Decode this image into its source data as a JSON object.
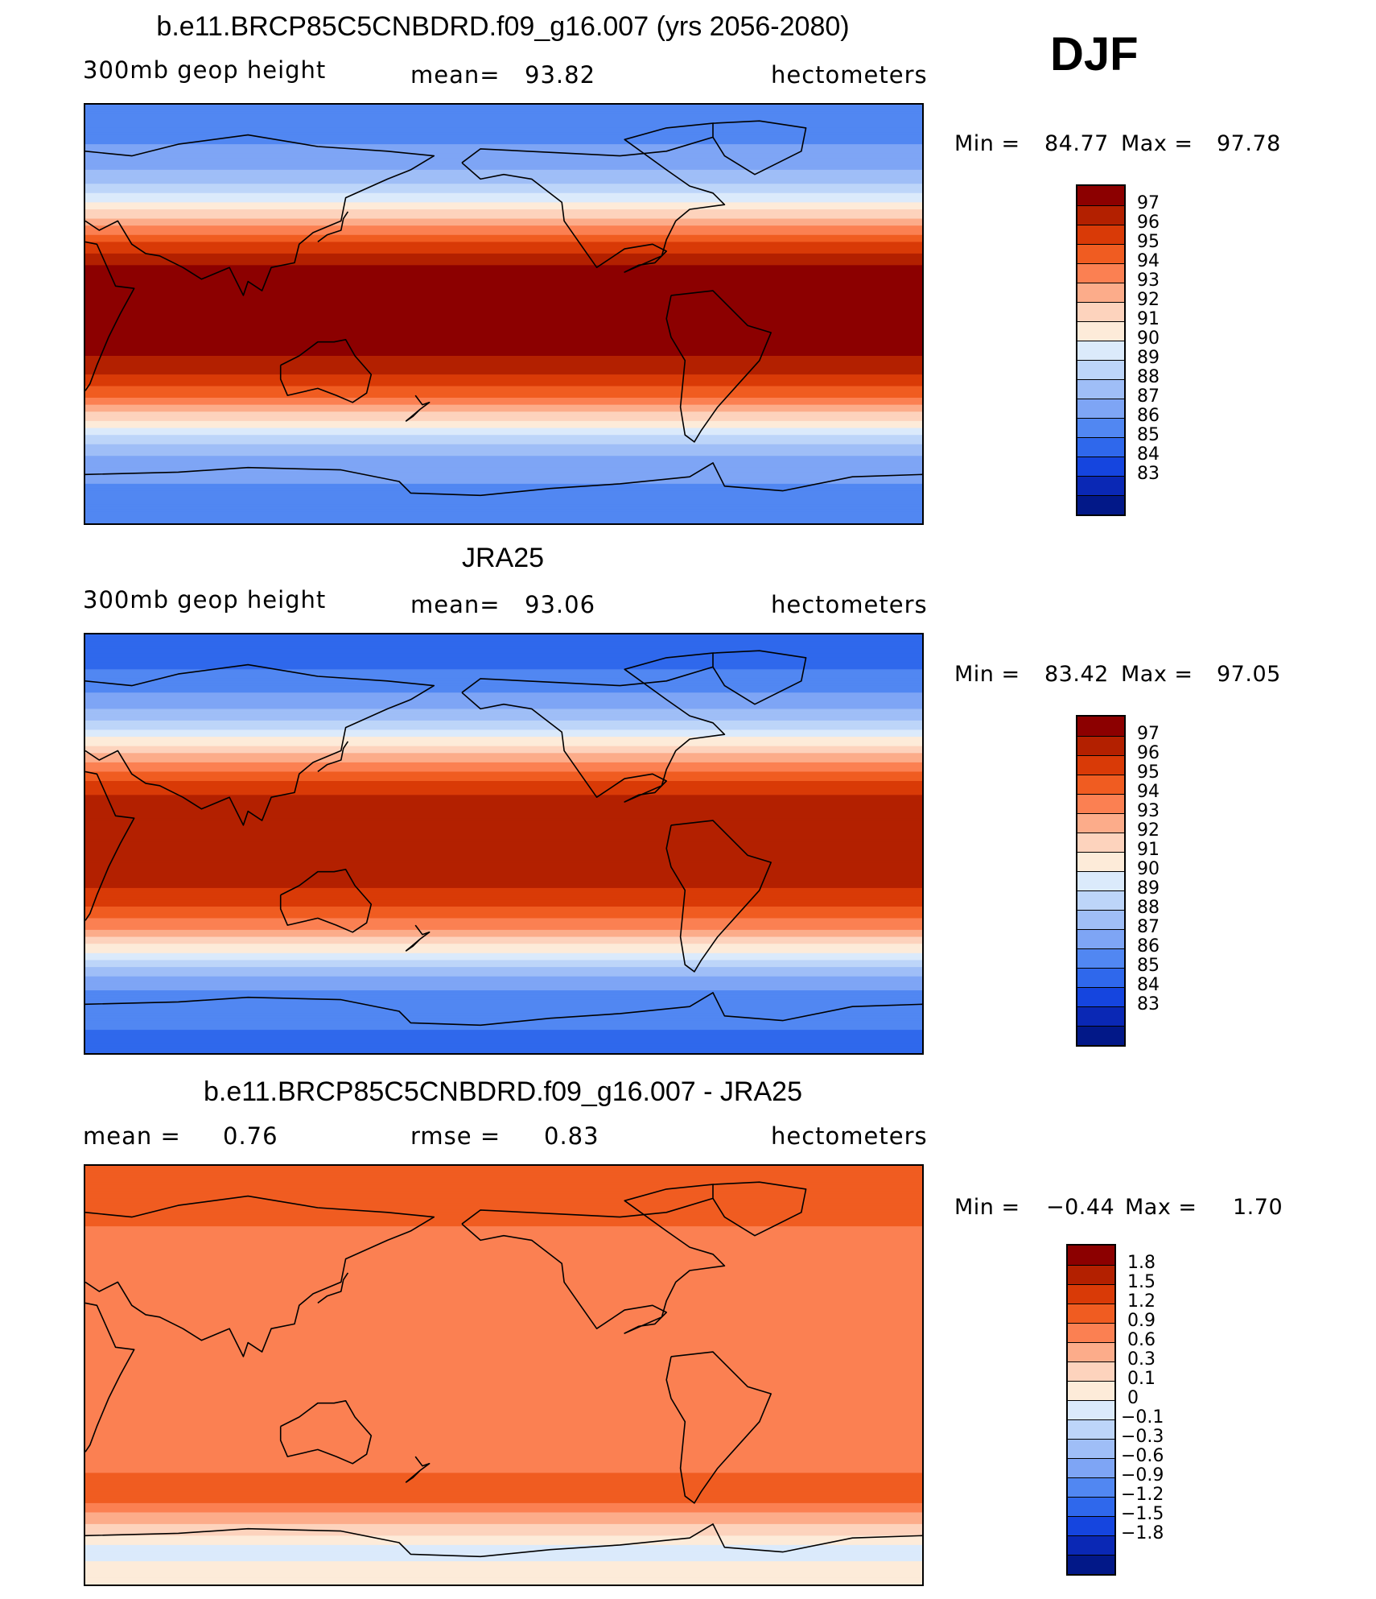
{
  "season": "DJF",
  "units": "hectometers",
  "colors": {
    "warm": [
      "#8c0000",
      "#b32000",
      "#d93a07",
      "#f05c21",
      "#fb8052",
      "#fcac8a",
      "#fdd3bd",
      "#fdebd9"
    ],
    "cool": [
      "#dbeafb",
      "#bdd5f9",
      "#9fbef7",
      "#7ea5f5",
      "#5187f2",
      "#2f68ec",
      "#1545df",
      "#0a28b5",
      "#021888"
    ],
    "land_outline": "#000000"
  },
  "chart_data": [
    {
      "type": "heatmap",
      "panel": "model",
      "title": "b.e11.BRCP85C5CNBDRD.f09_g16.007 (yrs 2056-2080)",
      "variable": "300mb geop height",
      "stat_label": "mean=",
      "stat_value": "93.82",
      "units": "hectometers",
      "min_label": "Min =",
      "min_value": "84.77",
      "max_label": "Max =",
      "max_value": "97.78",
      "x_range_lon": [
        30,
        390
      ],
      "y_range_lat": [
        -90,
        90
      ],
      "colorbar_levels": [
        "97",
        "96",
        "95",
        "94",
        "93",
        "92",
        "91",
        "90",
        "89",
        "88",
        "87",
        "86",
        "85",
        "84",
        "83"
      ],
      "colorbar_colors": [
        "#8c0000",
        "#b32000",
        "#d93a07",
        "#f05c21",
        "#fb8052",
        "#fcac8a",
        "#fdd3bd",
        "#fdebd9",
        "#dbeafb",
        "#bdd5f9",
        "#9fbef7",
        "#7ea5f5",
        "#5187f2",
        "#2f68ec",
        "#1545df",
        "#0a28b5",
        "#021888"
      ],
      "zonal_profile": [
        {
          "lat": 90,
          "value": 85.3
        },
        {
          "lat": 75,
          "value": 85.8
        },
        {
          "lat": 60,
          "value": 87.2
        },
        {
          "lat": 50,
          "value": 89.4
        },
        {
          "lat": 40,
          "value": 92.4
        },
        {
          "lat": 30,
          "value": 95.3
        },
        {
          "lat": 20,
          "value": 97.1
        },
        {
          "lat": 0,
          "value": 97.6
        },
        {
          "lat": -15,
          "value": 97.3
        },
        {
          "lat": -25,
          "value": 96.2
        },
        {
          "lat": -35,
          "value": 94.2
        },
        {
          "lat": -45,
          "value": 91.2
        },
        {
          "lat": -55,
          "value": 88.2
        },
        {
          "lat": -65,
          "value": 86.3
        },
        {
          "lat": -90,
          "value": 85.4
        }
      ]
    },
    {
      "type": "heatmap",
      "panel": "obs",
      "title": "JRA25",
      "variable": "300mb geop height",
      "stat_label": "mean=",
      "stat_value": "93.06",
      "units": "hectometers",
      "min_label": "Min =",
      "min_value": "83.42",
      "max_label": "Max =",
      "max_value": "97.05",
      "x_range_lon": [
        30,
        390
      ],
      "y_range_lat": [
        -90,
        90
      ],
      "colorbar_levels": [
        "97",
        "96",
        "95",
        "94",
        "93",
        "92",
        "91",
        "90",
        "89",
        "88",
        "87",
        "86",
        "85",
        "84",
        "83"
      ],
      "colorbar_colors": [
        "#8c0000",
        "#b32000",
        "#d93a07",
        "#f05c21",
        "#fb8052",
        "#fcac8a",
        "#fdd3bd",
        "#fdebd9",
        "#dbeafb",
        "#bdd5f9",
        "#9fbef7",
        "#7ea5f5",
        "#5187f2",
        "#2f68ec",
        "#1545df",
        "#0a28b5",
        "#021888"
      ],
      "zonal_profile": [
        {
          "lat": 90,
          "value": 84.2
        },
        {
          "lat": 75,
          "value": 85.0
        },
        {
          "lat": 60,
          "value": 86.5
        },
        {
          "lat": 50,
          "value": 88.7
        },
        {
          "lat": 40,
          "value": 91.6
        },
        {
          "lat": 30,
          "value": 94.4
        },
        {
          "lat": 20,
          "value": 96.2
        },
        {
          "lat": 0,
          "value": 96.6
        },
        {
          "lat": -15,
          "value": 96.4
        },
        {
          "lat": -25,
          "value": 95.4
        },
        {
          "lat": -35,
          "value": 93.5
        },
        {
          "lat": -45,
          "value": 90.5
        },
        {
          "lat": -55,
          "value": 87.4
        },
        {
          "lat": -65,
          "value": 85.6
        },
        {
          "lat": -90,
          "value": 84.6
        }
      ]
    },
    {
      "type": "heatmap",
      "panel": "difference",
      "title": "b.e11.BRCP85C5CNBDRD.f09_g16.007 - JRA25",
      "stat_label": "mean =",
      "stat_value": "0.76",
      "stat2_label": "rmse =",
      "stat2_value": "0.83",
      "units": "hectometers",
      "min_label": "Min =",
      "min_value": "−0.44",
      "max_label": "Max =",
      "max_value": "1.70",
      "x_range_lon": [
        30,
        390
      ],
      "y_range_lat": [
        -90,
        90
      ],
      "colorbar_levels": [
        "1.8",
        "1.5",
        "1.2",
        "0.9",
        "0.6",
        "0.3",
        "0.1",
        "0",
        "−0.1",
        "−0.3",
        "−0.6",
        "−0.9",
        "−1.2",
        "−1.5",
        "−1.8"
      ],
      "colorbar_colors": [
        "#8c0000",
        "#b32000",
        "#d93a07",
        "#f05c21",
        "#fb8052",
        "#fcac8a",
        "#fdd3bd",
        "#fdebd9",
        "#dbeafb",
        "#bdd5f9",
        "#9fbef7",
        "#7ea5f5",
        "#5187f2",
        "#2f68ec",
        "#1545df",
        "#0a28b5",
        "#021888"
      ],
      "zonal_profile": [
        {
          "lat": 90,
          "value": 1.2
        },
        {
          "lat": 75,
          "value": 1.05
        },
        {
          "lat": 60,
          "value": 0.85
        },
        {
          "lat": 45,
          "value": 0.65
        },
        {
          "lat": 30,
          "value": 0.8
        },
        {
          "lat": 15,
          "value": 0.75
        },
        {
          "lat": 0,
          "value": 0.85
        },
        {
          "lat": -15,
          "value": 0.8
        },
        {
          "lat": -30,
          "value": 0.7
        },
        {
          "lat": -45,
          "value": 0.95
        },
        {
          "lat": -55,
          "value": 0.9
        },
        {
          "lat": -65,
          "value": 0.2
        },
        {
          "lat": -75,
          "value": -0.05
        },
        {
          "lat": -90,
          "value": 0.1
        }
      ]
    }
  ]
}
